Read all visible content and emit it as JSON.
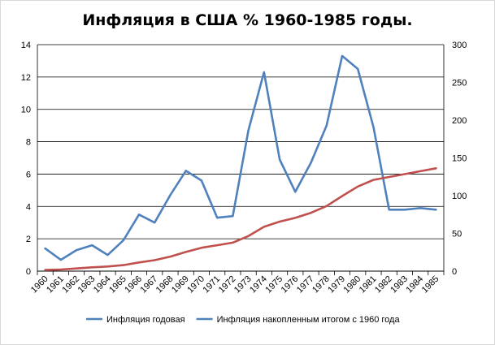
{
  "chart_data": {
    "type": "line",
    "title": "Инфляция в США % 1960-1985 годы.",
    "xlabel": "",
    "ylabel": "",
    "categories": [
      "1960",
      "1961",
      "1962",
      "1963",
      "1964",
      "1965",
      "1966",
      "1967",
      "1968",
      "1969",
      "1970",
      "1971",
      "1972",
      "1973",
      "1974",
      "1975",
      "1976",
      "1977",
      "1978",
      "1979",
      "1980",
      "1981",
      "1982",
      "1983",
      "1984",
      "1985"
    ],
    "ylim": [
      0,
      14
    ],
    "y2lim": [
      0,
      300
    ],
    "yticks": [
      "0",
      "2",
      "4",
      "6",
      "8",
      "10",
      "12",
      "14"
    ],
    "y2ticks": [
      "0",
      "50",
      "100",
      "150",
      "200",
      "250",
      "300"
    ],
    "grid": true,
    "legend_position": "bottom",
    "series": [
      {
        "name": "Инфляция годовая",
        "axis": "left",
        "color": "#4f81bd",
        "values": [
          1.4,
          0.7,
          1.3,
          1.6,
          1.0,
          1.9,
          3.5,
          3.0,
          4.7,
          6.2,
          5.6,
          3.3,
          3.4,
          8.7,
          12.3,
          6.9,
          4.9,
          6.7,
          9.0,
          13.3,
          12.5,
          8.9,
          3.8,
          3.8,
          3.9,
          3.8
        ]
      },
      {
        "name": "Инфляция накопленным итогом с 1960 года",
        "axis": "right",
        "color": "#c0504d",
        "legend_color": "#4f81bd",
        "values": [
          1.5,
          2.2,
          3.5,
          5.1,
          6.1,
          8.0,
          11.5,
          14.5,
          19.2,
          25.4,
          31.0,
          34.3,
          37.7,
          46.4,
          58.7,
          65.6,
          70.5,
          77.2,
          86.2,
          99.5,
          112.0,
          120.9,
          124.7,
          128.5,
          132.4,
          136.2
        ]
      }
    ]
  }
}
